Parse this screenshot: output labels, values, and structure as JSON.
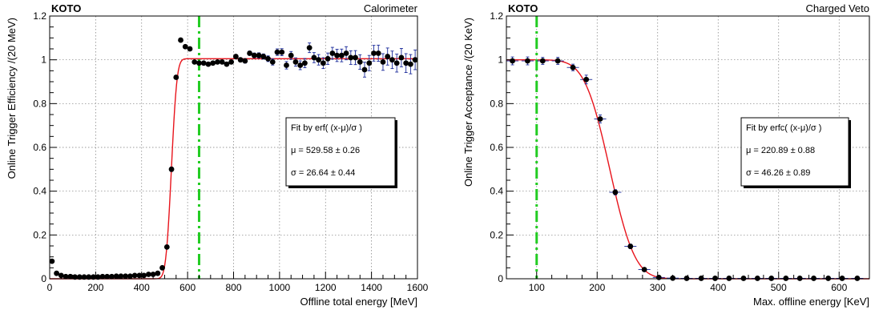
{
  "chart_data": [
    {
      "type": "scatter",
      "experiment_label": "KOTO",
      "subsystem_label": "Calorimeter",
      "xlabel": "Offline total energy [MeV]",
      "ylabel": "Online Trigger Efficiency /(20 MeV)",
      "xlim": [
        0,
        1600
      ],
      "ylim": [
        0,
        1.2
      ],
      "xticks": [
        0,
        200,
        400,
        600,
        800,
        1000,
        1200,
        1400,
        1600
      ],
      "yticks": [
        0,
        0.2,
        0.4,
        0.6,
        0.8,
        1,
        1.2
      ],
      "xtick_labels": [
        "0",
        "200",
        "400",
        "600",
        "800",
        "1000",
        "1200",
        "1400",
        "1600"
      ],
      "ytick_labels": [
        "0",
        "0.2",
        "0.4",
        "0.6",
        "0.8",
        "1",
        "1.2"
      ],
      "grid": true,
      "cut_line_x": 650,
      "fit": {
        "function": "erf",
        "mu": 529.58,
        "sigma": 26.64,
        "level": 1.005
      },
      "legend": {
        "title": "Fit by erf( (x-μ)/σ )",
        "mu_line": "μ = 529.58 ± 0.26",
        "sigma_line": "σ = 26.64 ± 0.44"
      },
      "series": [
        {
          "x": [
            10,
            30,
            50,
            70,
            90,
            110,
            130,
            150,
            170,
            190,
            210,
            230,
            250,
            270,
            290,
            310,
            330,
            350,
            370,
            390,
            410,
            430,
            450,
            470,
            490,
            510,
            530,
            550,
            570,
            590,
            610,
            630,
            650,
            670,
            690,
            710,
            730,
            750,
            770,
            790,
            810,
            830,
            850,
            870,
            890,
            910,
            930,
            950,
            970,
            990,
            1010,
            1030,
            1050,
            1070,
            1090,
            1110,
            1130,
            1150,
            1170,
            1190,
            1210,
            1230,
            1250,
            1270,
            1290,
            1310,
            1330,
            1350,
            1370,
            1390,
            1410,
            1430,
            1450,
            1470,
            1490,
            1510,
            1530,
            1550,
            1570,
            1590
          ],
          "y": [
            0.08,
            0.025,
            0.015,
            0.01,
            0.01,
            0.008,
            0.008,
            0.008,
            0.008,
            0.008,
            0.008,
            0.01,
            0.01,
            0.01,
            0.012,
            0.012,
            0.012,
            0.012,
            0.015,
            0.015,
            0.015,
            0.02,
            0.02,
            0.025,
            0.05,
            0.145,
            0.5,
            0.92,
            1.09,
            1.06,
            1.05,
            0.99,
            0.985,
            0.985,
            0.98,
            0.985,
            0.99,
            0.99,
            0.98,
            0.99,
            1.015,
            1.0,
            0.995,
            1.03,
            1.02,
            1.02,
            1.015,
            1.005,
            0.99,
            1.035,
            1.035,
            0.975,
            1.02,
            0.99,
            0.975,
            0.985,
            1.055,
            1.01,
            1.0,
            0.985,
            1.005,
            1.03,
            1.02,
            1.02,
            1.03,
            1.01,
            1.01,
            0.99,
            0.955,
            0.985,
            1.03,
            1.03,
            0.99,
            1.015,
            1.0,
            0.985,
            1.01,
            0.985,
            0.98,
            1.0
          ],
          "yerr": [
            0.005,
            0.004,
            0.003,
            0.003,
            0.003,
            0.003,
            0.003,
            0.003,
            0.003,
            0.003,
            0.003,
            0.003,
            0.003,
            0.003,
            0.003,
            0.003,
            0.003,
            0.003,
            0.003,
            0.003,
            0.003,
            0.004,
            0.004,
            0.004,
            0.005,
            0.008,
            0.01,
            0.008,
            0.006,
            0.006,
            0.006,
            0.006,
            0.006,
            0.006,
            0.006,
            0.006,
            0.007,
            0.007,
            0.007,
            0.008,
            0.008,
            0.009,
            0.01,
            0.01,
            0.011,
            0.012,
            0.012,
            0.013,
            0.014,
            0.015,
            0.016,
            0.017,
            0.018,
            0.019,
            0.02,
            0.021,
            0.022,
            0.023,
            0.024,
            0.025,
            0.026,
            0.027,
            0.028,
            0.029,
            0.03,
            0.031,
            0.032,
            0.033,
            0.034,
            0.035,
            0.036,
            0.037,
            0.038,
            0.039,
            0.04,
            0.041,
            0.042,
            0.043,
            0.044,
            0.045
          ]
        }
      ]
    },
    {
      "type": "scatter",
      "experiment_label": "KOTO",
      "subsystem_label": "Charged Veto",
      "xlabel": "Max. offline energy [KeV]",
      "ylabel": "Online Trigger Acceptance /(20 KeV)",
      "xlim": [
        50,
        650
      ],
      "ylim": [
        0,
        1.2
      ],
      "xticks": [
        100,
        200,
        300,
        400,
        500,
        600
      ],
      "yticks": [
        0,
        0.2,
        0.4,
        0.6,
        0.8,
        1,
        1.2
      ],
      "xtick_labels": [
        "100",
        "200",
        "300",
        "400",
        "500",
        "600"
      ],
      "ytick_labels": [
        "0",
        "0.2",
        "0.4",
        "0.6",
        "0.8",
        "1",
        "1.2"
      ],
      "grid": true,
      "cut_line_x": 100,
      "fit": {
        "function": "erfc",
        "mu": 220.89,
        "sigma": 46.26,
        "level": 1.0
      },
      "legend": {
        "title": "Fit by erfc( (x-μ)/σ )",
        "mu_line": "μ = 220.89 ± 0.88",
        "sigma_line": "σ = 46.26 ± 0.89"
      },
      "series": [
        {
          "x": [
            60,
            85,
            110,
            135,
            160,
            182,
            205,
            230,
            255,
            278,
            302,
            325,
            348,
            372,
            395,
            418,
            442,
            465,
            488,
            512,
            535,
            558,
            582,
            605,
            630
          ],
          "y": [
            0.995,
            0.995,
            0.995,
            0.995,
            0.965,
            0.91,
            0.73,
            0.395,
            0.148,
            0.042,
            0.006,
            0.003,
            0.002,
            0.002,
            0.002,
            0.002,
            0.002,
            0.002,
            0.002,
            0.002,
            0.002,
            0.002,
            0.002,
            0.002,
            0.002
          ],
          "xerr": [
            10,
            10,
            10,
            10,
            10,
            10,
            10,
            10,
            10,
            10,
            10,
            10,
            10,
            10,
            10,
            10,
            10,
            10,
            10,
            10,
            10,
            10,
            10,
            10,
            10
          ],
          "yerr": [
            0.018,
            0.018,
            0.016,
            0.016,
            0.015,
            0.02,
            0.018,
            0.012,
            0.01,
            0.007,
            0.003,
            0.002,
            0.002,
            0.002,
            0.002,
            0.002,
            0.002,
            0.002,
            0.002,
            0.002,
            0.002,
            0.002,
            0.002,
            0.002,
            0.002
          ]
        }
      ]
    }
  ]
}
